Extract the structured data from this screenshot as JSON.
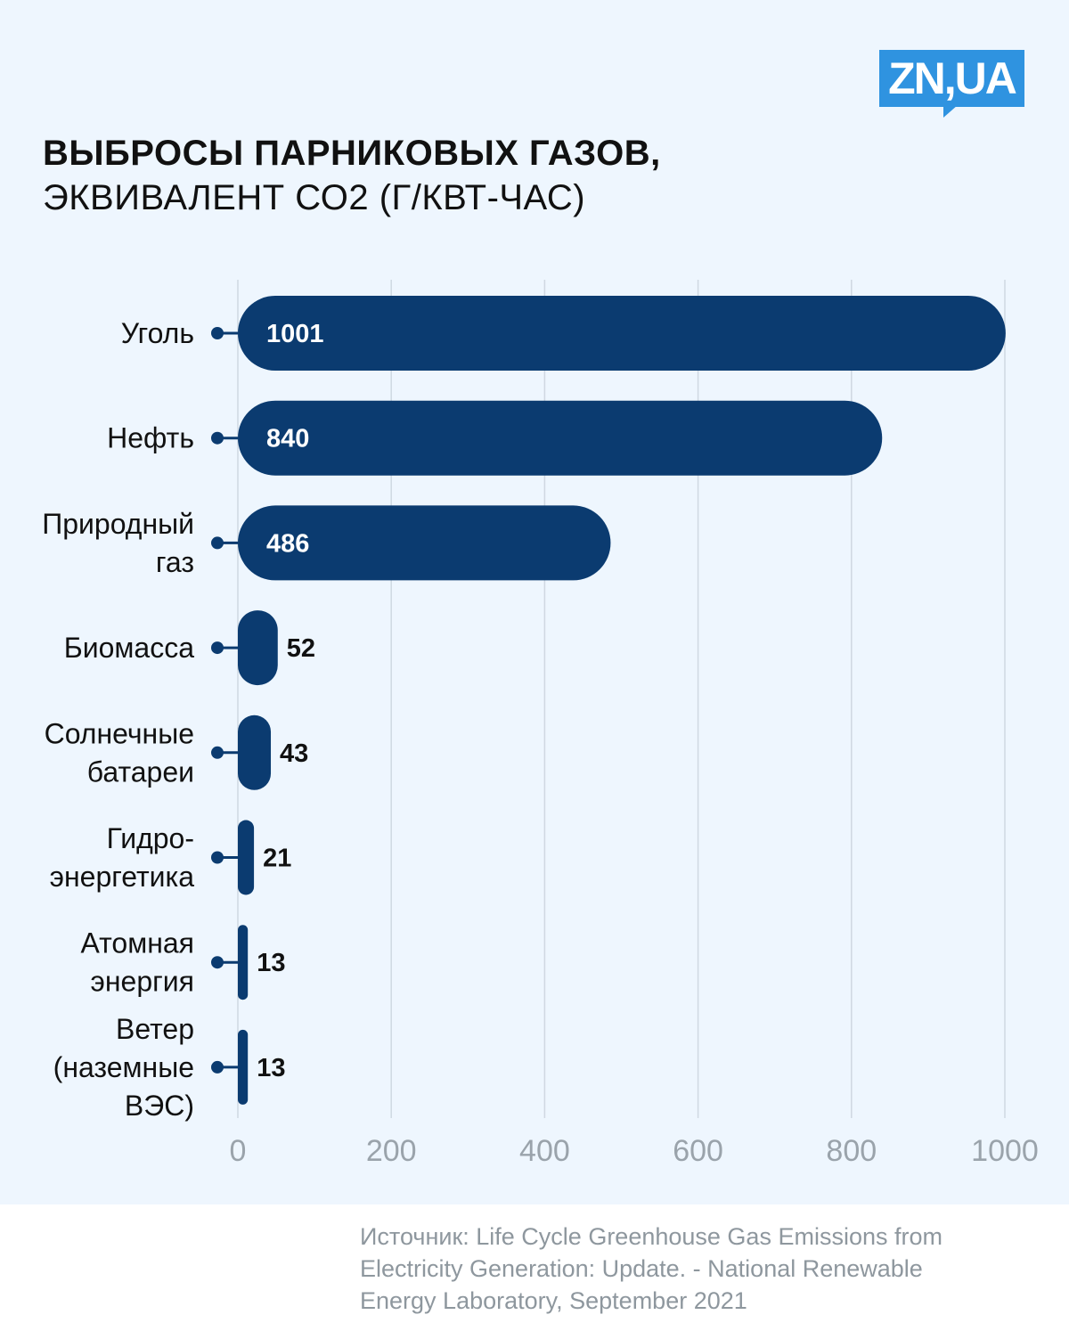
{
  "brand": {
    "logo_text": "ZN,UA",
    "accent": "#2f93e0"
  },
  "header": {
    "title": "ВЫБРОСЫ ПАРНИКОВЫХ ГАЗОВ,",
    "subtitle": "ЭКВИВАЛЕНТ СО2 (Г/КВТ-ЧАС)"
  },
  "chart_data": {
    "type": "bar",
    "orientation": "horizontal",
    "categories": [
      [
        "Уголь"
      ],
      [
        "Нефть"
      ],
      [
        "Природный",
        "газ"
      ],
      [
        "Биомасса"
      ],
      [
        "Солнечные",
        "батареи"
      ],
      [
        "Гидро-",
        "энергетика"
      ],
      [
        "Атомная",
        "энергия"
      ],
      [
        "Ветер",
        "(наземные",
        "ВЭС)"
      ]
    ],
    "values": [
      1001,
      840,
      486,
      52,
      43,
      21,
      13,
      13
    ],
    "xlim": [
      0,
      1000
    ],
    "xticks": [
      0,
      200,
      400,
      600,
      800,
      1000
    ],
    "grid": true,
    "bar_color": "#0b3b70"
  },
  "source": {
    "lines": [
      "Источник: Life Cycle Greenhouse Gas Emissions from",
      "Electricity Generation: Update. - National Renewable",
      "Energy Laboratory, September 2021"
    ]
  }
}
